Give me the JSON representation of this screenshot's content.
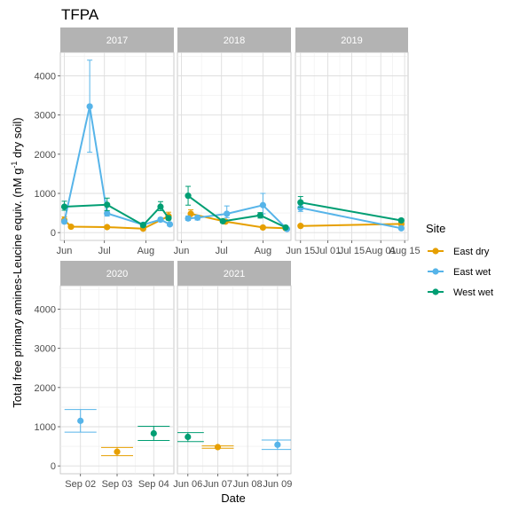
{
  "title": "TFPA",
  "xlabel": "Date",
  "ylabel_main": "Total free primary amines-Leucine equiv. (nM g",
  "ylabel_sup": "-1",
  "ylabel_tail": " dry soil)",
  "legend": {
    "title": "Site",
    "entries": [
      {
        "name": "East dry",
        "color": "#E69F00"
      },
      {
        "name": "East wet",
        "color": "#56B4E9"
      },
      {
        "name": "West wet",
        "color": "#009E73"
      }
    ]
  },
  "chart_data": {
    "type": "line",
    "ylim": [
      -200,
      4600
    ],
    "yticks": [
      0,
      1000,
      2000,
      3000,
      4000
    ],
    "grid": true,
    "legend_position": "right",
    "facets": [
      {
        "label": "2017",
        "xticks": [
          {
            "x": 0,
            "label": "Jun"
          },
          {
            "x": 30,
            "label": "Jul"
          },
          {
            "x": 61,
            "label": "Aug"
          }
        ],
        "xlim": [
          -3,
          82
        ],
        "series": [
          {
            "name": "East dry",
            "points": [
              {
                "x": 0,
                "y": 320,
                "lo": 250,
                "hi": 400
              },
              {
                "x": 5,
                "y": 150,
                "lo": 130,
                "hi": 170
              },
              {
                "x": 32,
                "y": 140,
                "lo": 120,
                "hi": 160
              },
              {
                "x": 59,
                "y": 100,
                "lo": 80,
                "hi": 120
              },
              {
                "x": 78,
                "y": 420,
                "lo": 320,
                "hi": 520
              }
            ]
          },
          {
            "name": "East wet",
            "points": [
              {
                "x": 0,
                "y": 280,
                "lo": 230,
                "hi": 330
              },
              {
                "x": 19,
                "y": 3220,
                "lo": 2050,
                "hi": 4400
              },
              {
                "x": 32,
                "y": 490,
                "lo": 420,
                "hi": 560
              },
              {
                "x": 59,
                "y": 200,
                "lo": 150,
                "hi": 250
              },
              {
                "x": 72,
                "y": 330,
                "lo": 280,
                "hi": 380
              },
              {
                "x": 79,
                "y": 210,
                "lo": 170,
                "hi": 250
              }
            ]
          },
          {
            "name": "West wet",
            "points": [
              {
                "x": 0,
                "y": 660,
                "lo": 570,
                "hi": 800
              },
              {
                "x": 32,
                "y": 710,
                "lo": 560,
                "hi": 880
              },
              {
                "x": 59,
                "y": 190,
                "lo": 150,
                "hi": 230
              },
              {
                "x": 72,
                "y": 660,
                "lo": 560,
                "hi": 790
              },
              {
                "x": 78,
                "y": 370,
                "lo": 320,
                "hi": 420
              }
            ]
          }
        ]
      },
      {
        "label": "2018",
        "xticks": [
          {
            "x": 0,
            "label": "Jun"
          },
          {
            "x": 30,
            "label": "Jul"
          },
          {
            "x": 61,
            "label": "Aug"
          }
        ],
        "xlim": [
          -3,
          82
        ],
        "series": [
          {
            "name": "East dry",
            "points": [
              {
                "x": 7,
                "y": 480,
                "lo": 380,
                "hi": 580
              },
              {
                "x": 33,
                "y": 280,
                "lo": 250,
                "hi": 310
              },
              {
                "x": 61,
                "y": 130,
                "lo": 110,
                "hi": 150
              },
              {
                "x": 78,
                "y": 110,
                "lo": 90,
                "hi": 130
              }
            ]
          },
          {
            "name": "East wet",
            "points": [
              {
                "x": 5,
                "y": 360,
                "lo": 310,
                "hi": 420
              },
              {
                "x": 12,
                "y": 380,
                "lo": 320,
                "hi": 440
              },
              {
                "x": 34,
                "y": 480,
                "lo": 380,
                "hi": 680
              },
              {
                "x": 61,
                "y": 700,
                "lo": 480,
                "hi": 1000
              },
              {
                "x": 79,
                "y": 90,
                "lo": 60,
                "hi": 130
              }
            ]
          },
          {
            "name": "West wet",
            "points": [
              {
                "x": 5,
                "y": 940,
                "lo": 700,
                "hi": 1180
              },
              {
                "x": 31,
                "y": 290,
                "lo": 250,
                "hi": 330
              },
              {
                "x": 59,
                "y": 440,
                "lo": 370,
                "hi": 510
              },
              {
                "x": 78,
                "y": 130,
                "lo": 100,
                "hi": 170
              }
            ]
          }
        ]
      },
      {
        "label": "2019",
        "xticks": [
          {
            "x": 14,
            "label": "Jun 15"
          },
          {
            "x": 30,
            "label": "Jul 01"
          },
          {
            "x": 44,
            "label": "Jul 15"
          },
          {
            "x": 61,
            "label": "Aug 01"
          },
          {
            "x": 75,
            "label": "Aug 15"
          }
        ],
        "xlim": [
          11,
          77
        ],
        "series": [
          {
            "name": "East dry",
            "points": [
              {
                "x": 14,
                "y": 170,
                "lo": 150,
                "hi": 190
              },
              {
                "x": 73,
                "y": 220,
                "lo": 190,
                "hi": 250
              }
            ]
          },
          {
            "name": "East wet",
            "points": [
              {
                "x": 14,
                "y": 630,
                "lo": 540,
                "hi": 730
              },
              {
                "x": 73,
                "y": 110,
                "lo": 80,
                "hi": 140
              }
            ]
          },
          {
            "name": "West wet",
            "points": [
              {
                "x": 14,
                "y": 770,
                "lo": 650,
                "hi": 920
              },
              {
                "x": 73,
                "y": 310,
                "lo": 270,
                "hi": 350
              }
            ]
          }
        ]
      },
      {
        "label": "2020",
        "xticks": [
          {
            "x": 0,
            "label": "Sep 02"
          },
          {
            "x": 1,
            "label": "Sep 03"
          },
          {
            "x": 2,
            "label": "Sep 04"
          }
        ],
        "xlim": [
          -0.55,
          2.55
        ],
        "series": [
          {
            "name": "East dry",
            "points": [
              {
                "x": 1,
                "y": 360,
                "lo": 260,
                "hi": 470
              }
            ]
          },
          {
            "name": "East wet",
            "points": [
              {
                "x": 0,
                "y": 1150,
                "lo": 860,
                "hi": 1440
              }
            ]
          },
          {
            "name": "West wet",
            "points": [
              {
                "x": 2,
                "y": 830,
                "lo": 650,
                "hi": 1010
              }
            ]
          }
        ]
      },
      {
        "label": "2021",
        "xticks": [
          {
            "x": 0,
            "label": "Jun 06"
          },
          {
            "x": 1,
            "label": "Jun 07"
          },
          {
            "x": 2,
            "label": "Jun 08"
          },
          {
            "x": 3,
            "label": "Jun 09"
          }
        ],
        "xlim": [
          -0.35,
          3.45
        ],
        "series": [
          {
            "name": "East dry",
            "points": [
              {
                "x": 1,
                "y": 480,
                "lo": 450,
                "hi": 510
              }
            ]
          },
          {
            "name": "East wet",
            "points": [
              {
                "x": 3,
                "y": 540,
                "lo": 420,
                "hi": 660
              }
            ]
          },
          {
            "name": "West wet",
            "points": [
              {
                "x": 0,
                "y": 740,
                "lo": 620,
                "hi": 850
              }
            ]
          }
        ]
      }
    ]
  }
}
